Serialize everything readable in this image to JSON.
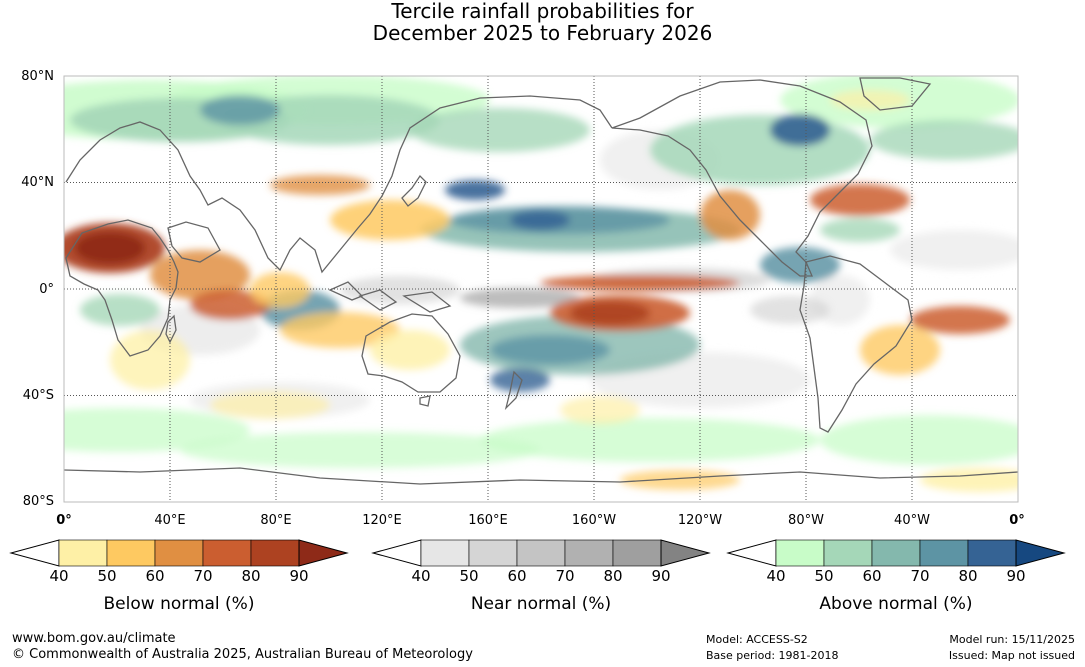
{
  "title_line1": "Tercile rainfall probabilities for",
  "title_line2": "December 2025 to February 2026",
  "lat_labels": [
    "80°N",
    "40°N",
    "0°",
    "40°S",
    "80°S"
  ],
  "lon_labels": [
    "0°",
    "40°E",
    "80°E",
    "120°E",
    "160°E",
    "160°W",
    "120°W",
    "80°W",
    "40°W",
    "0°"
  ],
  "colorbars": [
    {
      "name": "below",
      "title": "Below normal (%)",
      "ticks": [
        "40",
        "50",
        "60",
        "70",
        "80",
        "90"
      ],
      "colors": [
        "#fef0a6",
        "#fec961",
        "#e08f42",
        "#cb5e30",
        "#ad4221"
      ],
      "under": "#ffffff",
      "over": "#8e2a18"
    },
    {
      "name": "near",
      "title": "Near normal (%)",
      "ticks": [
        "40",
        "50",
        "60",
        "70",
        "80",
        "90"
      ],
      "colors": [
        "#e6e6e6",
        "#d5d5d5",
        "#c4c4c4",
        "#b1b1b1",
        "#9f9f9f"
      ],
      "under": "#ffffff",
      "over": "#838383"
    },
    {
      "name": "above",
      "title": "Above normal (%)",
      "ticks": [
        "40",
        "50",
        "60",
        "70",
        "80",
        "90"
      ],
      "colors": [
        "#c8fcc8",
        "#a5d7b8",
        "#84b8ad",
        "#5d94a4",
        "#356394"
      ],
      "under": "#ffffff",
      "over": "#164880"
    }
  ],
  "footer": {
    "website": "www.bom.gov.au/climate",
    "copyright": "© Commonwealth of Australia 2025, Australian Bureau of Meteorology",
    "model": "Model: ACCESS-S2",
    "base_period": "Base period: 1981-2018",
    "model_run": "Model run: 15/11/2025",
    "issued": "Issued: Map not issued"
  }
}
